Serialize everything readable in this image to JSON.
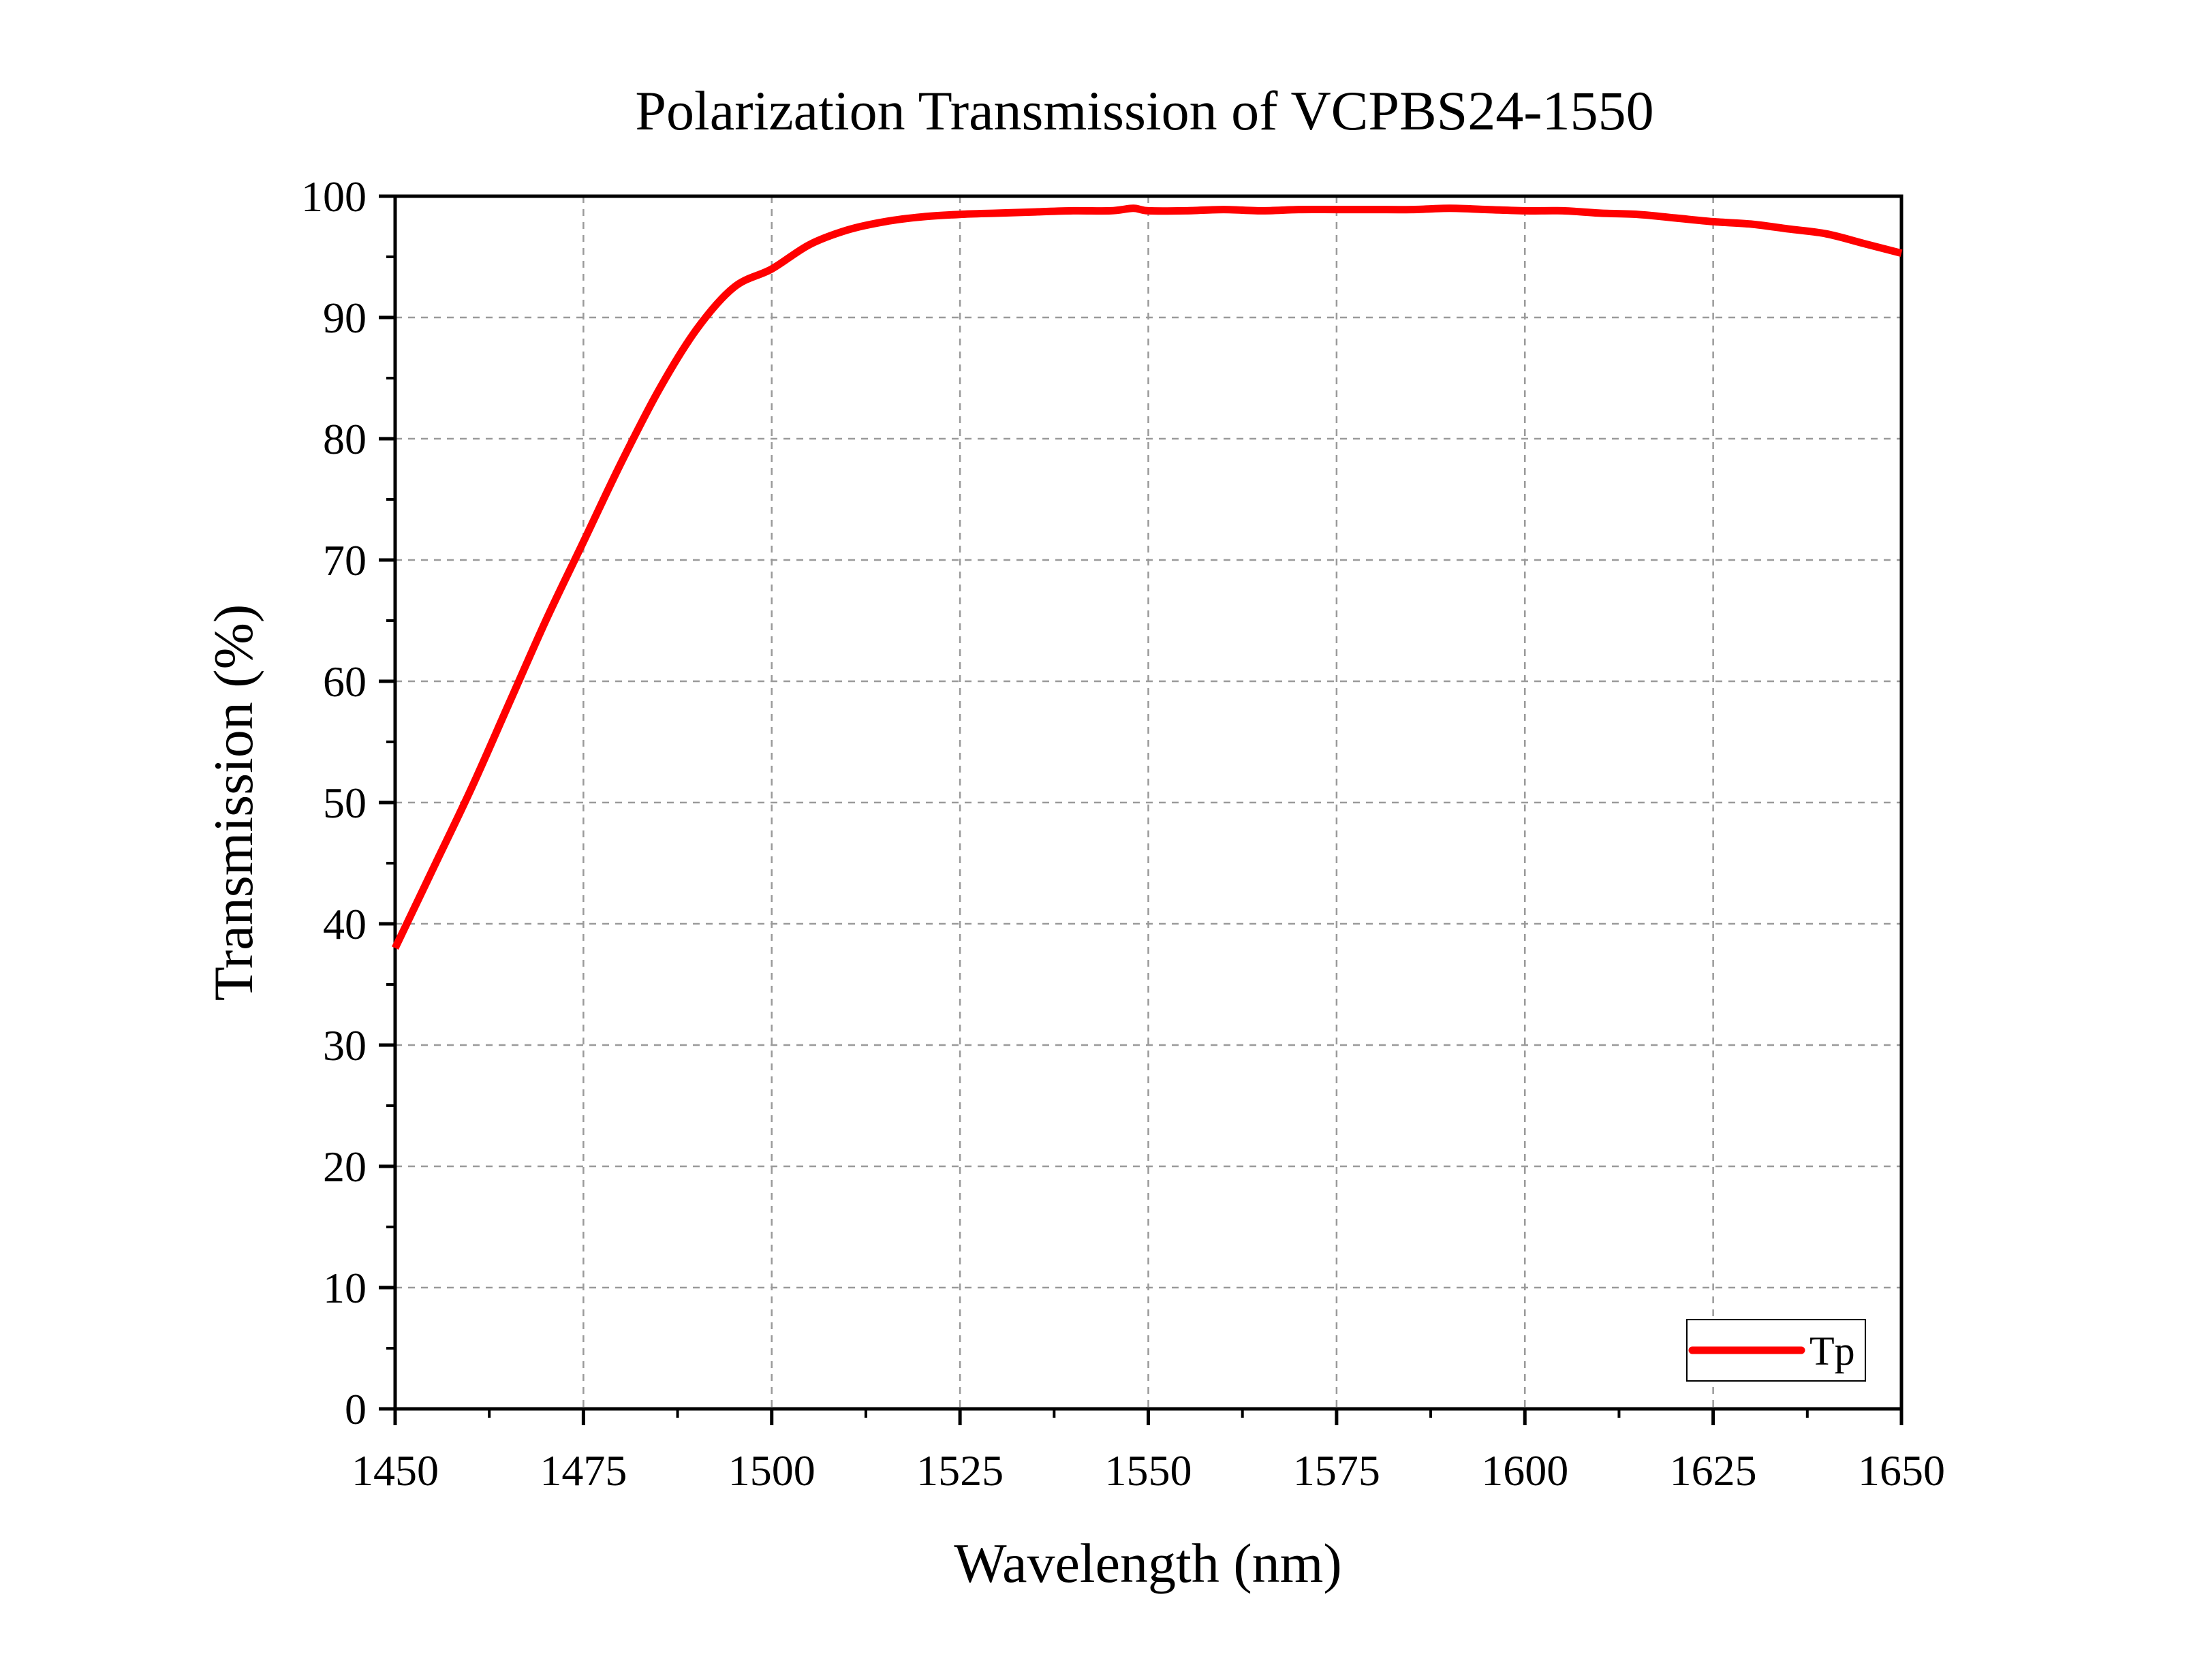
{
  "chart_data": {
    "type": "line",
    "title": "Polarization Transmission of VCPBS24-1550",
    "xlabel": "Wavelength (nm)",
    "ylabel": "Transmission (%)",
    "xlim": [
      1450,
      1650
    ],
    "ylim": [
      0,
      100
    ],
    "x_ticks": [
      1450,
      1475,
      1500,
      1525,
      1550,
      1575,
      1600,
      1625,
      1650
    ],
    "y_ticks": [
      0,
      10,
      20,
      30,
      40,
      50,
      60,
      70,
      80,
      90,
      100
    ],
    "grid": true,
    "legend_position": "bottom-right",
    "series": [
      {
        "name": "Tp",
        "color": "#ff0000",
        "x": [
          1450,
          1455,
          1460,
          1465,
          1470,
          1475,
          1480,
          1485,
          1490,
          1495,
          1500,
          1505,
          1510,
          1515,
          1520,
          1525,
          1530,
          1535,
          1540,
          1545,
          1548,
          1550,
          1555,
          1560,
          1565,
          1570,
          1575,
          1580,
          1585,
          1590,
          1595,
          1600,
          1605,
          1610,
          1615,
          1620,
          1625,
          1630,
          1635,
          1640,
          1645,
          1650
        ],
        "y": [
          38,
          44.5,
          51,
          58,
          65,
          71.5,
          78,
          84,
          89,
          92.5,
          94,
          96,
          97.2,
          97.9,
          98.3,
          98.5,
          98.6,
          98.7,
          98.8,
          98.8,
          99.0,
          98.8,
          98.8,
          98.9,
          98.8,
          98.9,
          98.9,
          98.9,
          98.9,
          99.0,
          98.9,
          98.8,
          98.8,
          98.6,
          98.5,
          98.2,
          97.9,
          97.7,
          97.3,
          96.9,
          96.1,
          95.3
        ]
      }
    ]
  }
}
